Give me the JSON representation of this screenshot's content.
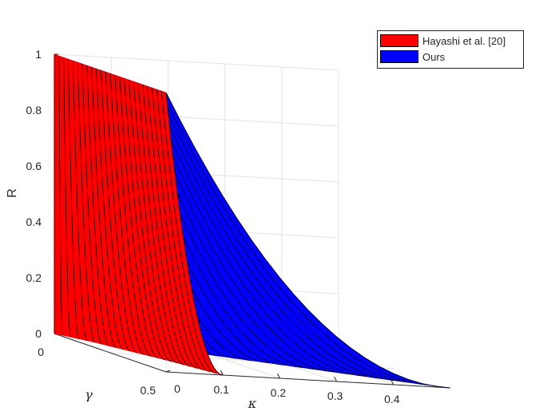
{
  "chart_data": {
    "type": "surface3d",
    "zlabel": "R",
    "xlabel": "κ",
    "ylabel": "γ",
    "x_ticks": [
      "0.1",
      "0.2",
      "0.3",
      "0.4"
    ],
    "y_ticks": [
      "0",
      "0.5"
    ],
    "z_ticks": [
      "0",
      "0.2",
      "0.4",
      "0.6",
      "0.8",
      "1"
    ],
    "x_label_zero": "0",
    "xlim": [
      0,
      0.5
    ],
    "ylim": [
      0,
      0.5
    ],
    "zlim": [
      0,
      1
    ],
    "grid": true,
    "legend_position": "top-right",
    "series": [
      {
        "name": "Hayashi et al. [20]",
        "color": "#ff0000",
        "kappa_max": [
          0.0,
          0.03,
          0.05,
          0.07,
          0.085,
          0.1
        ],
        "gamma": [
          0.0,
          0.1,
          0.2,
          0.3,
          0.4,
          0.5
        ]
      },
      {
        "name": "Ours",
        "color": "#0000ff",
        "kappa_max": [
          0.0,
          0.1,
          0.2,
          0.3,
          0.4,
          0.5
        ],
        "gamma": [
          0.0,
          0.1,
          0.2,
          0.3,
          0.4,
          0.5
        ]
      }
    ]
  }
}
